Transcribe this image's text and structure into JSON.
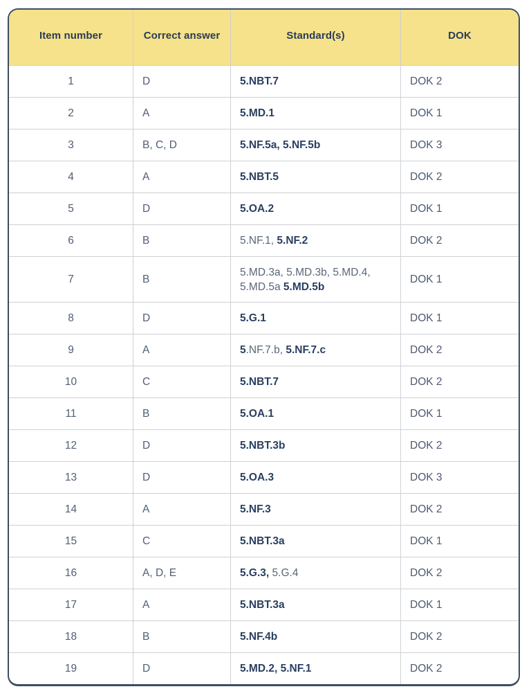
{
  "table": {
    "headers": [
      "Item number",
      "Correct answer",
      "Standard(s)",
      "DOK"
    ],
    "colors": {
      "header_bg": "#f5e28a",
      "header_text": "#2a3b5a",
      "outer_border": "#3d4d60",
      "grid_line": "#cfd0d2",
      "cell_text": "#505e74",
      "standard_regular_text": "#5b6678",
      "standard_bold_text": "#293f60"
    },
    "rows": [
      {
        "item": "1",
        "answer": "D",
        "standards": [
          {
            "text": "5.NBT.7",
            "bold": true
          }
        ],
        "dok": "DOK 2"
      },
      {
        "item": "2",
        "answer": "A",
        "standards": [
          {
            "text": "5.MD.1",
            "bold": true
          }
        ],
        "dok": "DOK 1"
      },
      {
        "item": "3",
        "answer": "B, C, D",
        "standards": [
          {
            "text": "5.NF.5a, 5.NF.5b",
            "bold": true
          }
        ],
        "dok": "DOK 3"
      },
      {
        "item": "4",
        "answer": "A",
        "standards": [
          {
            "text": "5.NBT.5",
            "bold": true
          }
        ],
        "dok": "DOK 2"
      },
      {
        "item": "5",
        "answer": "D",
        "standards": [
          {
            "text": "5.OA.2",
            "bold": true
          }
        ],
        "dok": "DOK 1"
      },
      {
        "item": "6",
        "answer": "B",
        "standards": [
          {
            "text": "5.NF.1, ",
            "bold": false
          },
          {
            "text": "5.NF.2",
            "bold": true
          }
        ],
        "dok": "DOK 2"
      },
      {
        "item": "7",
        "answer": "B",
        "standards": [
          {
            "text": "5.MD.3a, 5.MD.3b, 5.MD.4, 5.MD.5a ",
            "bold": false
          },
          {
            "text": "5.MD.5b",
            "bold": true
          }
        ],
        "dok": "DOK 1"
      },
      {
        "item": "8",
        "answer": "D",
        "standards": [
          {
            "text": "5.G.1",
            "bold": true
          }
        ],
        "dok": "DOK 1"
      },
      {
        "item": "9",
        "answer": "A",
        "standards": [
          {
            "text": "5",
            "bold": true
          },
          {
            "text": ".NF.7.b, ",
            "bold": false
          },
          {
            "text": "5.NF.7.c",
            "bold": true
          }
        ],
        "dok": "DOK 2"
      },
      {
        "item": "10",
        "answer": "C",
        "standards": [
          {
            "text": "5.NBT.7",
            "bold": true
          }
        ],
        "dok": "DOK 2"
      },
      {
        "item": "11",
        "answer": "B",
        "standards": [
          {
            "text": "5.OA.1",
            "bold": true
          }
        ],
        "dok": "DOK 1"
      },
      {
        "item": "12",
        "answer": "D",
        "standards": [
          {
            "text": "5.NBT.3b",
            "bold": true
          }
        ],
        "dok": "DOK 2"
      },
      {
        "item": "13",
        "answer": "D",
        "standards": [
          {
            "text": "5.OA.3",
            "bold": true
          }
        ],
        "dok": "DOK 3"
      },
      {
        "item": "14",
        "answer": "A",
        "standards": [
          {
            "text": "5.NF.3",
            "bold": true
          }
        ],
        "dok": "DOK 2"
      },
      {
        "item": "15",
        "answer": "C",
        "standards": [
          {
            "text": "5.NBT.3a",
            "bold": true
          }
        ],
        "dok": "DOK 1"
      },
      {
        "item": "16",
        "answer": "A, D, E",
        "standards": [
          {
            "text": "5.G.3,",
            "bold": true
          },
          {
            "text": " 5.G.4",
            "bold": false
          }
        ],
        "dok": "DOK 2"
      },
      {
        "item": "17",
        "answer": "A",
        "standards": [
          {
            "text": "5.NBT.3a",
            "bold": true
          }
        ],
        "dok": "DOK 1"
      },
      {
        "item": "18",
        "answer": "B",
        "standards": [
          {
            "text": "5.NF.4b",
            "bold": true
          }
        ],
        "dok": "DOK 2"
      },
      {
        "item": "19",
        "answer": "D",
        "standards": [
          {
            "text": "5.MD.2, 5.NF.1",
            "bold": true
          }
        ],
        "dok": "DOK 2"
      }
    ]
  }
}
